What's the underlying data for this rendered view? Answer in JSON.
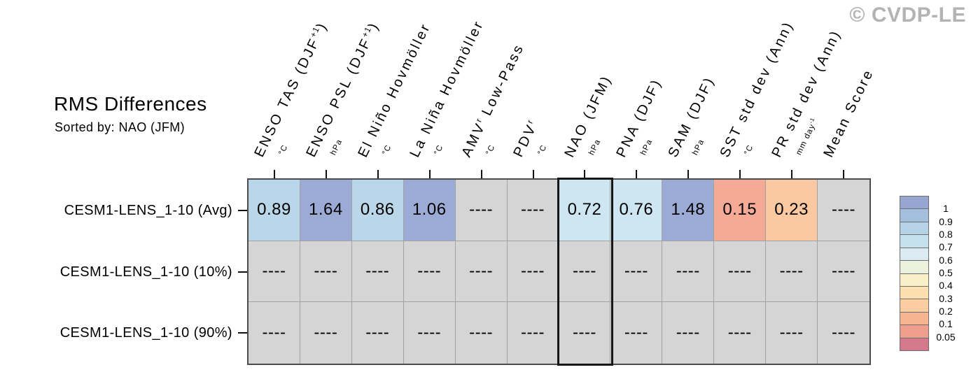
{
  "copyright": "© CVDP-LE",
  "chart_data": {
    "type": "heatmap",
    "title": "RMS Differences",
    "subtitle": "Sorted by: NAO (JFM)",
    "sorted_by": "NAO (JFM)",
    "rows": [
      "CESM1-LENS_1-10 (Avg)",
      "CESM1-LENS_1-10 (10%)",
      "CESM1-LENS_1-10 (90%)"
    ],
    "columns": [
      {
        "label": "ENSO TAS (DJF",
        "sup": "+1",
        "post": ")",
        "unit": "°C",
        "unit_sup": ""
      },
      {
        "label": "ENSO PSL (DJF",
        "sup": "+1",
        "post": ")",
        "unit": "hPa",
        "unit_sup": ""
      },
      {
        "label": "El Niño Hovmöller",
        "sup": "",
        "post": "",
        "unit": "°C",
        "unit_sup": ""
      },
      {
        "label": "La Niña Hovmöller",
        "sup": "",
        "post": "",
        "unit": "°C",
        "unit_sup": ""
      },
      {
        "label": "AMV",
        "sup": "r",
        "post": " Low-Pass",
        "unit": "°C",
        "unit_sup": ""
      },
      {
        "label": "PDV",
        "sup": "r",
        "post": "",
        "unit": "°C",
        "unit_sup": ""
      },
      {
        "label": "NAO (JFM)",
        "sup": "",
        "post": "",
        "unit": "hPa",
        "unit_sup": ""
      },
      {
        "label": "PNA (DJF)",
        "sup": "",
        "post": "",
        "unit": "hPa",
        "unit_sup": ""
      },
      {
        "label": "SAM (DJF)",
        "sup": "",
        "post": "",
        "unit": "hPa",
        "unit_sup": ""
      },
      {
        "label": "SST std dev (Ann)",
        "sup": "",
        "post": "",
        "unit": "°C",
        "unit_sup": ""
      },
      {
        "label": "PR std dev (Ann)",
        "sup": "",
        "post": "",
        "unit": "mm day",
        "unit_sup": "-1"
      },
      {
        "label": "Mean Score",
        "sup": "",
        "post": "",
        "unit": "",
        "unit_sup": ""
      }
    ],
    "values": [
      [
        "0.89",
        "1.64",
        "0.86",
        "1.06",
        "----",
        "----",
        "0.72",
        "0.76",
        "1.48",
        "0.15",
        "0.23",
        "----"
      ],
      [
        "----",
        "----",
        "----",
        "----",
        "----",
        "----",
        "----",
        "----",
        "----",
        "----",
        "----",
        "----"
      ],
      [
        "----",
        "----",
        "----",
        "----",
        "----",
        "----",
        "----",
        "----",
        "----",
        "----",
        "----",
        "----"
      ]
    ],
    "missing_marker": "----",
    "cell_colors": [
      [
        "#b9d7e9",
        "#9cabd5",
        "#b9d7e9",
        "#9cabd5",
        "#d5d5d5",
        "#d5d5d5",
        "#cde6f1",
        "#cde6f1",
        "#9cabd5",
        "#f4aa95",
        "#fbc9a1",
        "#d5d5d5"
      ],
      [
        "#d5d5d5",
        "#d5d5d5",
        "#d5d5d5",
        "#d5d5d5",
        "#d5d5d5",
        "#d5d5d5",
        "#d5d5d5",
        "#d5d5d5",
        "#d5d5d5",
        "#d5d5d5",
        "#d5d5d5",
        "#d5d5d5"
      ],
      [
        "#d5d5d5",
        "#d5d5d5",
        "#d5d5d5",
        "#d5d5d5",
        "#d5d5d5",
        "#d5d5d5",
        "#d5d5d5",
        "#d5d5d5",
        "#d5d5d5",
        "#d5d5d5",
        "#d5d5d5",
        "#d5d5d5"
      ]
    ],
    "highlighted_column_index": 6,
    "colorbar": {
      "position": "right",
      "colors": [
        "#96a5d2",
        "#a4bedd",
        "#b4d3e7",
        "#c6e1ee",
        "#dcebf3",
        "#ecf1dd",
        "#f9f0c9",
        "#fbdfae",
        "#fccda0",
        "#f6b591",
        "#ef9d8d",
        "#d3798b"
      ],
      "tick_labels": [
        "1",
        "0.9",
        "0.8",
        "0.7",
        "0.6",
        "0.5",
        "0.4",
        "0.3",
        "0.2",
        "0.1",
        "0.05"
      ]
    }
  }
}
